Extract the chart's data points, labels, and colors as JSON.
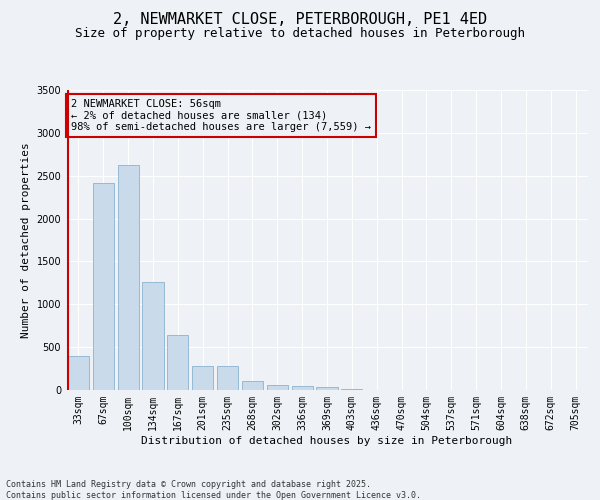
{
  "title": "2, NEWMARKET CLOSE, PETERBOROUGH, PE1 4ED",
  "subtitle": "Size of property relative to detached houses in Peterborough",
  "xlabel": "Distribution of detached houses by size in Peterborough",
  "ylabel": "Number of detached properties",
  "bar_color": "#c9daea",
  "bar_edge_color": "#7aaac8",
  "categories": [
    "33sqm",
    "67sqm",
    "100sqm",
    "134sqm",
    "167sqm",
    "201sqm",
    "235sqm",
    "268sqm",
    "302sqm",
    "336sqm",
    "369sqm",
    "403sqm",
    "436sqm",
    "470sqm",
    "504sqm",
    "537sqm",
    "571sqm",
    "604sqm",
    "638sqm",
    "672sqm",
    "705sqm"
  ],
  "values": [
    400,
    2420,
    2620,
    1260,
    640,
    280,
    280,
    110,
    60,
    50,
    30,
    10,
    0,
    0,
    0,
    0,
    0,
    0,
    0,
    0,
    0
  ],
  "ylim": [
    0,
    3500
  ],
  "yticks": [
    0,
    500,
    1000,
    1500,
    2000,
    2500,
    3000,
    3500
  ],
  "vline_color": "#cc0000",
  "annotation_title": "2 NEWMARKET CLOSE: 56sqm",
  "annotation_line1": "← 2% of detached houses are smaller (134)",
  "annotation_line2": "98% of semi-detached houses are larger (7,559) →",
  "annotation_box_color": "#cc0000",
  "background_color": "#eef2f7",
  "grid_color": "#ffffff",
  "footer_line1": "Contains HM Land Registry data © Crown copyright and database right 2025.",
  "footer_line2": "Contains public sector information licensed under the Open Government Licence v3.0.",
  "title_fontsize": 11,
  "subtitle_fontsize": 9,
  "axis_label_fontsize": 8,
  "tick_fontsize": 7,
  "annotation_fontsize": 7.5
}
